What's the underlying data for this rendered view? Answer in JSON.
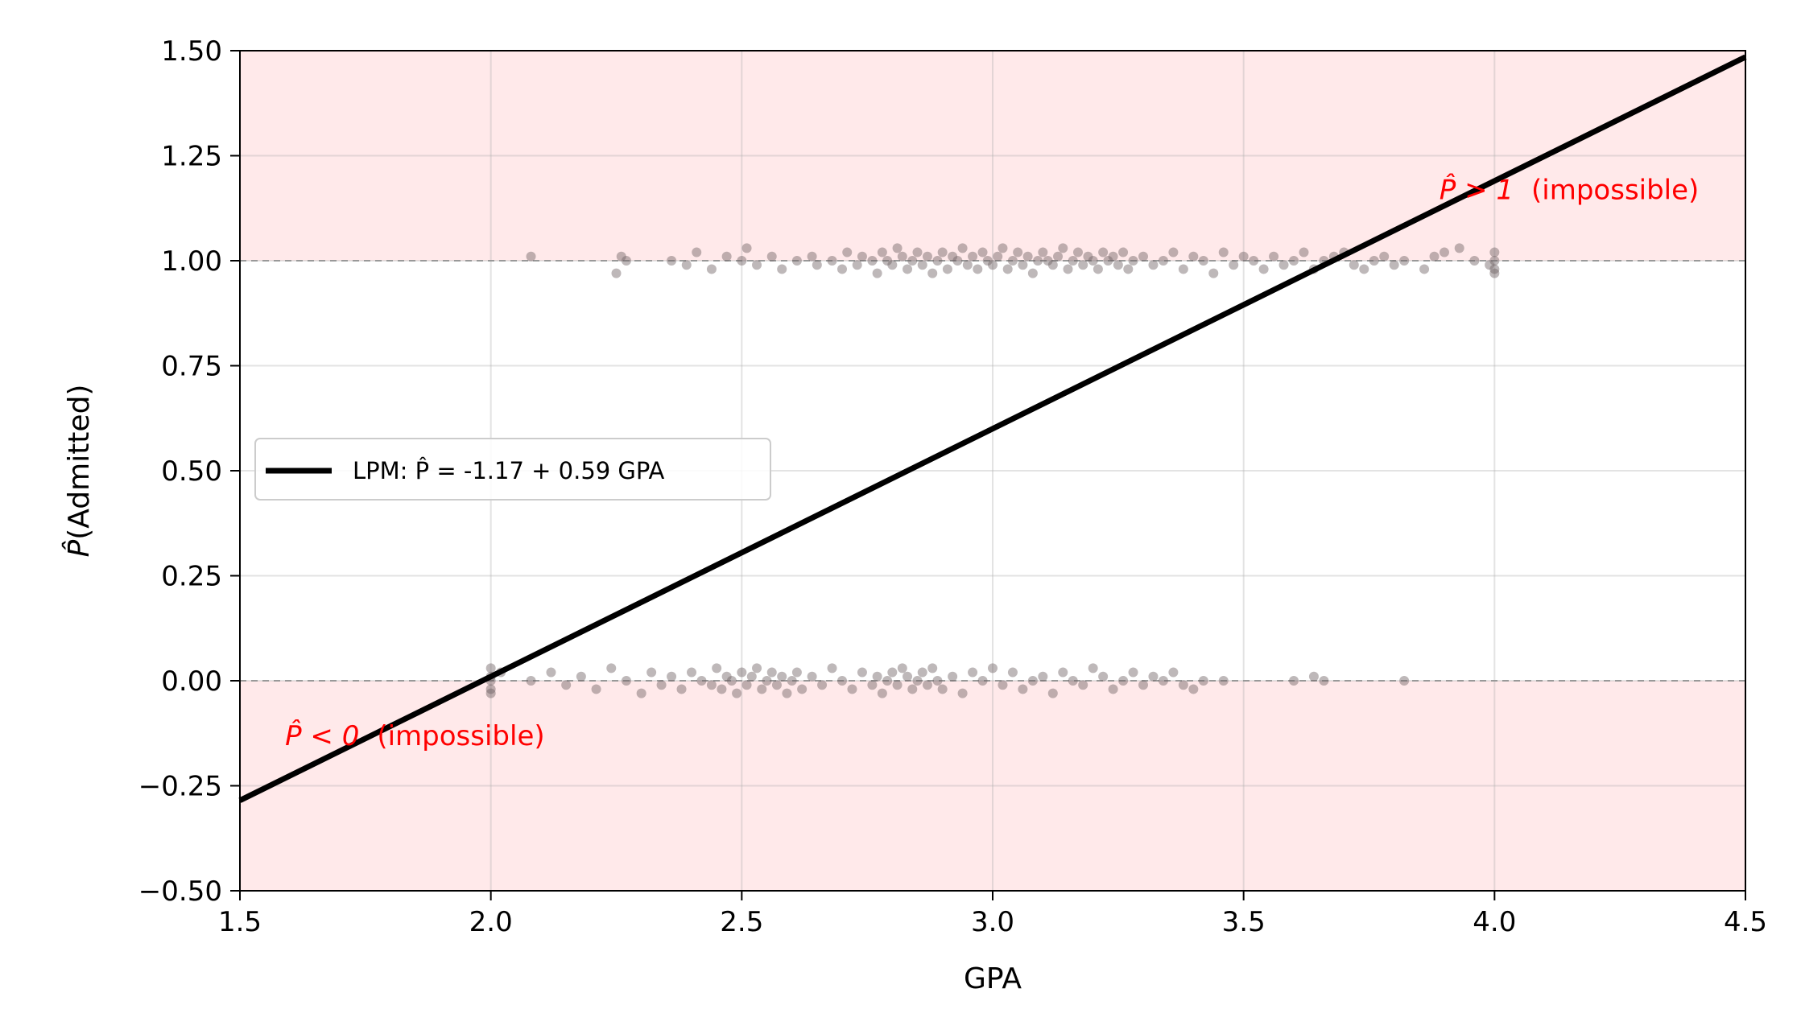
{
  "chart_data": {
    "type": "scatter",
    "xlabel": "GPA",
    "ylabel_prefix": "P̂",
    "ylabel_rest": "(Admitted)",
    "xlim": [
      1.5,
      4.5
    ],
    "ylim": [
      -0.5,
      1.5
    ],
    "xticks": [
      "1.5",
      "2.0",
      "2.5",
      "3.0",
      "3.5",
      "4.0",
      "4.5"
    ],
    "yticks": [
      "−0.50",
      "−0.25",
      "0.00",
      "0.25",
      "0.50",
      "0.75",
      "1.00",
      "1.25",
      "1.50"
    ],
    "grid": true,
    "legend_position": "center-left",
    "shaded_regions": [
      {
        "from": 1.0,
        "to": 1.5,
        "color": "#ffe9ea"
      },
      {
        "from": -0.5,
        "to": 0.0,
        "color": "#ffe9ea"
      }
    ],
    "reference_lines": [
      0.0,
      1.0
    ],
    "fit_line": {
      "label": "LPM: P̂ = -1.17 + 0.59 GPA",
      "intercept": -1.17,
      "slope": 0.59,
      "color": "#000000"
    },
    "annotations": [
      {
        "text_sym": "P̂ > 1",
        "text_rest": "(impossible)",
        "x": 3.89,
        "y": 1.17
      },
      {
        "text_sym": "P̂ < 0",
        "text_rest": "(impossible)",
        "x": 1.59,
        "y": -0.13
      }
    ],
    "point_color": "#6e6264",
    "series": [
      {
        "outcome": 1,
        "x": [
          2.08,
          2.25,
          2.26,
          2.27,
          2.36,
          2.39,
          2.41,
          2.44,
          2.47,
          2.5,
          2.51,
          2.53,
          2.56,
          2.58,
          2.61,
          2.64,
          2.65,
          2.68,
          2.7,
          2.71,
          2.73,
          2.74,
          2.76,
          2.77,
          2.78,
          2.79,
          2.8,
          2.81,
          2.82,
          2.83,
          2.84,
          2.85,
          2.86,
          2.87,
          2.88,
          2.89,
          2.9,
          2.91,
          2.92,
          2.93,
          2.94,
          2.95,
          2.96,
          2.97,
          2.98,
          2.99,
          3.0,
          3.01,
          3.02,
          3.03,
          3.04,
          3.05,
          3.06,
          3.07,
          3.08,
          3.09,
          3.1,
          3.11,
          3.12,
          3.13,
          3.14,
          3.15,
          3.16,
          3.17,
          3.18,
          3.19,
          3.2,
          3.21,
          3.22,
          3.23,
          3.24,
          3.25,
          3.26,
          3.27,
          3.28,
          3.3,
          3.32,
          3.34,
          3.36,
          3.38,
          3.4,
          3.42,
          3.44,
          3.46,
          3.48,
          3.5,
          3.52,
          3.54,
          3.56,
          3.58,
          3.6,
          3.62,
          3.64,
          3.66,
          3.68,
          3.7,
          3.72,
          3.74,
          3.76,
          3.78,
          3.8,
          3.82,
          3.86,
          3.88,
          3.9,
          3.93,
          3.96,
          3.99,
          4.0,
          4.0,
          4.0,
          4.0
        ],
        "y": [
          1.01,
          0.97,
          1.01,
          1.0,
          1.0,
          0.99,
          1.02,
          0.98,
          1.01,
          1.0,
          1.03,
          0.99,
          1.01,
          0.98,
          1.0,
          1.01,
          0.99,
          1.0,
          0.98,
          1.02,
          0.99,
          1.01,
          1.0,
          0.97,
          1.02,
          1.0,
          0.99,
          1.03,
          1.01,
          0.98,
          1.0,
          1.02,
          0.99,
          1.01,
          0.97,
          1.0,
          1.02,
          0.98,
          1.01,
          1.0,
          1.03,
          0.99,
          1.01,
          0.98,
          1.02,
          1.0,
          0.99,
          1.01,
          1.03,
          0.98,
          1.0,
          1.02,
          0.99,
          1.01,
          0.97,
          1.0,
          1.02,
          1.0,
          0.99,
          1.01,
          1.03,
          0.98,
          1.0,
          1.02,
          0.99,
          1.01,
          1.0,
          0.98,
          1.02,
          1.0,
          1.01,
          0.99,
          1.02,
          0.98,
          1.0,
          1.01,
          0.99,
          1.0,
          1.02,
          0.98,
          1.01,
          1.0,
          0.97,
          1.02,
          0.99,
          1.01,
          1.0,
          0.98,
          1.01,
          0.99,
          1.0,
          1.02,
          0.98,
          1.0,
          1.01,
          1.02,
          0.99,
          0.98,
          1.0,
          1.01,
          0.99,
          1.0,
          0.98,
          1.01,
          1.02,
          1.03,
          1.0,
          0.99,
          1.02,
          1.0,
          0.98,
          0.97
        ]
      },
      {
        "outcome": 0,
        "x": [
          2.0,
          2.0,
          2.0,
          2.0,
          2.0,
          2.02,
          2.08,
          2.12,
          2.15,
          2.18,
          2.21,
          2.24,
          2.27,
          2.3,
          2.32,
          2.34,
          2.36,
          2.38,
          2.4,
          2.42,
          2.44,
          2.45,
          2.46,
          2.47,
          2.48,
          2.49,
          2.5,
          2.51,
          2.52,
          2.53,
          2.54,
          2.55,
          2.56,
          2.57,
          2.58,
          2.59,
          2.6,
          2.61,
          2.62,
          2.64,
          2.66,
          2.68,
          2.7,
          2.72,
          2.74,
          2.76,
          2.77,
          2.78,
          2.79,
          2.8,
          2.81,
          2.82,
          2.83,
          2.84,
          2.85,
          2.86,
          2.87,
          2.88,
          2.89,
          2.9,
          2.92,
          2.94,
          2.96,
          2.98,
          3.0,
          3.02,
          3.04,
          3.06,
          3.08,
          3.1,
          3.12,
          3.14,
          3.16,
          3.18,
          3.2,
          3.22,
          3.24,
          3.26,
          3.28,
          3.3,
          3.32,
          3.34,
          3.36,
          3.38,
          3.4,
          3.42,
          3.46,
          3.6,
          3.64,
          3.66,
          3.82
        ],
        "y": [
          0.03,
          0.01,
          0.0,
          -0.02,
          -0.03,
          0.02,
          0.0,
          0.02,
          -0.01,
          0.01,
          -0.02,
          0.03,
          0.0,
          -0.03,
          0.02,
          -0.01,
          0.01,
          -0.02,
          0.02,
          0.0,
          -0.01,
          0.03,
          -0.02,
          0.01,
          0.0,
          -0.03,
          0.02,
          -0.01,
          0.01,
          0.03,
          -0.02,
          0.0,
          0.02,
          -0.01,
          0.01,
          -0.03,
          0.0,
          0.02,
          -0.02,
          0.01,
          -0.01,
          0.03,
          0.0,
          -0.02,
          0.02,
          -0.01,
          0.01,
          -0.03,
          0.0,
          0.02,
          -0.01,
          0.03,
          0.01,
          -0.02,
          0.0,
          0.02,
          -0.01,
          0.03,
          0.0,
          -0.02,
          0.01,
          -0.03,
          0.02,
          0.0,
          0.03,
          -0.01,
          0.02,
          -0.02,
          0.0,
          0.01,
          -0.03,
          0.02,
          0.0,
          -0.01,
          0.03,
          0.01,
          -0.02,
          0.0,
          0.02,
          -0.01,
          0.01,
          0.0,
          0.02,
          -0.01,
          -0.02,
          0.0,
          0.0,
          0.0,
          0.01,
          0.0,
          0.0
        ]
      }
    ]
  }
}
